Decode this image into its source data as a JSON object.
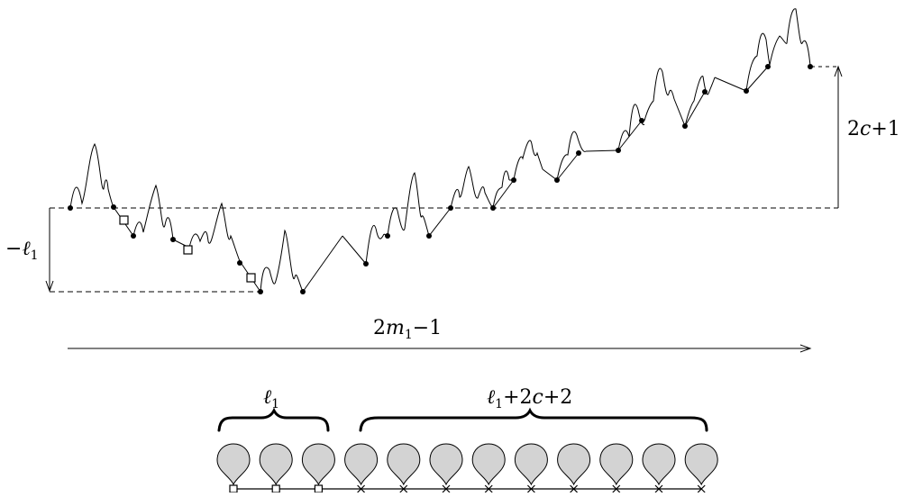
{
  "labels": {
    "neg_l1": {
      "prefix": "−",
      "var": "ℓ",
      "sub": "1"
    },
    "two_c_plus_1": {
      "pre": "2",
      "var": "c",
      "post": "+1"
    },
    "two_m1_minus_1": {
      "pre": "2",
      "var": "m",
      "sub": "1",
      "post": "−1"
    },
    "l1_brace": {
      "var": "ℓ",
      "sub": "1"
    },
    "l1_2c_2_brace": {
      "var": "ℓ",
      "sub": "1",
      "mid": "+2",
      "var2": "c",
      "post": "+2"
    }
  },
  "drops": {
    "count": 12,
    "square_marks": 3,
    "cross_marks": 9,
    "fill": "#d3d3d3"
  }
}
